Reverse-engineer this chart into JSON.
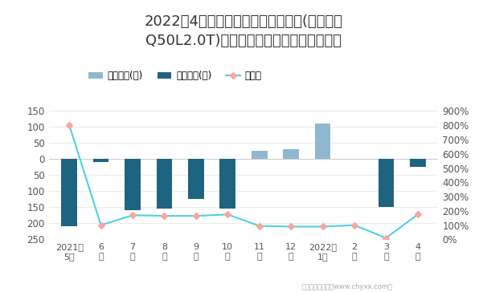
{
  "title_line1": "2022年4月英菲尼迪旗下最畅销轿车(英菲尼迪",
  "title_line2": "Q50L2.0T)近一年库存情况及产销率统计图",
  "x_labels": [
    "2021年\n5月",
    "6\n月",
    "7\n月",
    "8\n月",
    "9\n月",
    "10\n月",
    "11\n月",
    "12\n月",
    "2022年\n1月",
    "2\n月",
    "3\n月",
    "4\n月"
  ],
  "jiaya_bars": [
    0,
    0,
    0,
    0,
    0,
    0,
    25,
    30,
    110,
    0,
    0,
    0
  ],
  "qingcang_bars": [
    -210,
    -10,
    -160,
    -155,
    -125,
    -155,
    0,
    0,
    0,
    0,
    -150,
    -25
  ],
  "chanxiao_rate": [
    800,
    100,
    170,
    165,
    165,
    175,
    95,
    90,
    90,
    100,
    10,
    175
  ],
  "jiaya_color": "#8fb8d0",
  "qingcang_color": "#1e6480",
  "chanxiao_color": "#f4a8a0",
  "line_color": "#50d0e8",
  "legend_labels": [
    "积压库存(辆)",
    "清仓库存(辆)",
    "产销率"
  ],
  "footnote": "制图：智研咨询（www.chyxx.com）",
  "background_color": "#ffffff",
  "title_fontsize": 13,
  "label_fontsize": 8.5,
  "legend_fontsize": 8.5
}
